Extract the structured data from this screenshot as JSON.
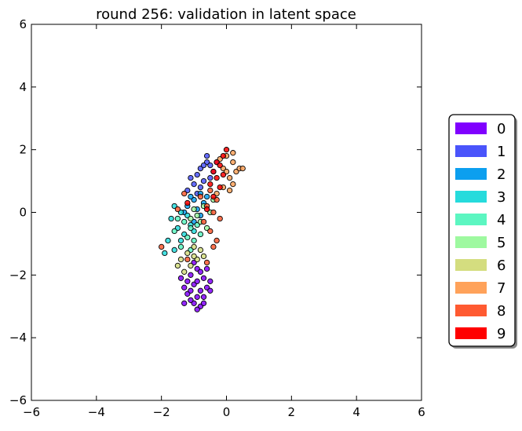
{
  "chart_data": {
    "type": "scatter",
    "title": "round 256: validation in latent space",
    "xlabel": "",
    "ylabel": "",
    "xlim": [
      -6,
      6
    ],
    "ylim": [
      -6,
      6
    ],
    "xticks": [
      -6,
      -4,
      -2,
      0,
      2,
      4,
      6
    ],
    "yticks": [
      -6,
      -4,
      -2,
      0,
      2,
      4,
      6
    ],
    "grid": false,
    "legend_position": "right",
    "series": [
      {
        "name": "0",
        "color": "#8000ff",
        "points": [
          [
            -0.9,
            -1.8
          ],
          [
            -1.1,
            -2.0
          ],
          [
            -0.7,
            -2.1
          ],
          [
            -1.0,
            -2.3
          ],
          [
            -0.8,
            -2.5
          ],
          [
            -1.2,
            -2.6
          ],
          [
            -0.6,
            -2.4
          ],
          [
            -0.9,
            -2.7
          ],
          [
            -1.0,
            -2.9
          ],
          [
            -0.8,
            -3.0
          ],
          [
            -1.1,
            -2.8
          ],
          [
            -0.7,
            -2.7
          ],
          [
            -0.9,
            -3.1
          ],
          [
            -1.3,
            -2.4
          ],
          [
            -0.5,
            -2.2
          ],
          [
            -1.0,
            -1.6
          ],
          [
            -0.8,
            -1.9
          ],
          [
            -1.2,
            -2.2
          ],
          [
            -0.6,
            -1.8
          ],
          [
            -1.4,
            -2.1
          ],
          [
            -0.9,
            -2.2
          ],
          [
            -1.1,
            -2.5
          ],
          [
            -0.7,
            -2.9
          ],
          [
            -0.5,
            -2.5
          ],
          [
            -1.3,
            -2.9
          ]
        ]
      },
      {
        "name": "1",
        "color": "#4a54fb",
        "points": [
          [
            -0.8,
            1.4
          ],
          [
            -0.6,
            1.6
          ],
          [
            -0.9,
            1.2
          ],
          [
            -0.5,
            1.5
          ],
          [
            -0.7,
            1.0
          ],
          [
            -1.0,
            0.9
          ],
          [
            -0.4,
            1.3
          ],
          [
            -0.6,
            1.8
          ],
          [
            -1.1,
            1.1
          ],
          [
            -0.3,
            1.6
          ],
          [
            -0.8,
            0.8
          ],
          [
            -0.5,
            1.1
          ],
          [
            -1.2,
            0.7
          ],
          [
            -0.7,
            1.5
          ],
          [
            -0.9,
            0.6
          ]
        ]
      },
      {
        "name": "2",
        "color": "#0c9fef",
        "points": [
          [
            -1.0,
            0.4
          ],
          [
            -0.8,
            0.6
          ],
          [
            -1.2,
            0.2
          ],
          [
            -0.7,
            0.3
          ],
          [
            -0.9,
            0.1
          ],
          [
            -1.1,
            0.5
          ],
          [
            -0.6,
            0.5
          ],
          [
            -1.3,
            0.0
          ],
          [
            -0.8,
            -0.1
          ],
          [
            -1.0,
            -0.3
          ]
        ]
      },
      {
        "name": "3",
        "color": "#26dbdc",
        "points": [
          [
            -1.6,
            0.2
          ],
          [
            -1.4,
            0.0
          ],
          [
            -1.7,
            -0.2
          ],
          [
            -1.2,
            -0.1
          ],
          [
            -1.5,
            -0.5
          ],
          [
            -1.3,
            -0.7
          ],
          [
            -1.8,
            -0.9
          ],
          [
            -1.6,
            -1.2
          ],
          [
            -1.1,
            -0.4
          ],
          [
            -1.4,
            -0.9
          ],
          [
            -1.9,
            -1.3
          ],
          [
            -1.0,
            -0.6
          ]
        ]
      },
      {
        "name": "4",
        "color": "#5cf6c1",
        "points": [
          [
            -1.3,
            -0.3
          ],
          [
            -1.1,
            -0.5
          ],
          [
            -1.5,
            -0.2
          ],
          [
            -0.9,
            -0.4
          ],
          [
            -1.2,
            -0.8
          ],
          [
            -1.4,
            -1.1
          ],
          [
            -1.0,
            -0.9
          ],
          [
            -1.6,
            -0.6
          ],
          [
            -0.8,
            -0.7
          ],
          [
            -1.1,
            -1.2
          ]
        ]
      },
      {
        "name": "5",
        "color": "#9ef9a0",
        "points": [
          [
            -0.7,
            0.2
          ],
          [
            -0.9,
            -0.1
          ],
          [
            -0.5,
            0.0
          ],
          [
            -1.1,
            -0.2
          ],
          [
            -0.6,
            -0.5
          ],
          [
            -0.8,
            -0.3
          ],
          [
            -0.4,
            0.4
          ],
          [
            -1.0,
            0.1
          ]
        ]
      },
      {
        "name": "6",
        "color": "#d4dd7f",
        "points": [
          [
            -1.0,
            -1.1
          ],
          [
            -1.2,
            -1.3
          ],
          [
            -0.8,
            -1.2
          ],
          [
            -1.4,
            -1.5
          ],
          [
            -0.9,
            -1.5
          ],
          [
            -1.1,
            -1.7
          ],
          [
            -1.3,
            -1.9
          ],
          [
            -0.7,
            -1.4
          ],
          [
            -1.5,
            -1.7
          ],
          [
            -1.0,
            -1.4
          ]
        ]
      },
      {
        "name": "7",
        "color": "#ffa25a",
        "points": [
          [
            0.0,
            1.8
          ],
          [
            0.2,
            1.6
          ],
          [
            -0.1,
            1.4
          ],
          [
            0.3,
            1.3
          ],
          [
            0.1,
            1.1
          ],
          [
            0.4,
            1.4
          ],
          [
            -0.2,
            1.7
          ],
          [
            0.2,
            1.9
          ],
          [
            0.0,
            1.3
          ],
          [
            0.5,
            1.4
          ],
          [
            -0.1,
            0.8
          ],
          [
            0.1,
            0.7
          ],
          [
            -0.3,
            0.6
          ],
          [
            0.2,
            0.9
          ]
        ]
      },
      {
        "name": "8",
        "color": "#ff5a31",
        "points": [
          [
            -0.5,
            0.7
          ],
          [
            -0.3,
            0.4
          ],
          [
            -0.6,
            0.2
          ],
          [
            -0.4,
            0.0
          ],
          [
            -0.7,
            -0.3
          ],
          [
            -0.5,
            -0.6
          ],
          [
            -0.3,
            -0.9
          ],
          [
            -0.2,
            -0.2
          ],
          [
            -0.8,
            0.5
          ],
          [
            -0.4,
            -1.1
          ],
          [
            -1.5,
            0.1
          ],
          [
            -1.3,
            0.6
          ],
          [
            -2.0,
            -1.1
          ],
          [
            -1.2,
            -1.5
          ],
          [
            -0.6,
            -1.6
          ]
        ]
      },
      {
        "name": "9",
        "color": "#ff0000",
        "points": [
          [
            -0.3,
            1.6
          ],
          [
            -0.1,
            1.8
          ],
          [
            0.0,
            2.0
          ],
          [
            -0.2,
            1.5
          ],
          [
            -0.4,
            1.3
          ],
          [
            -0.1,
            1.2
          ],
          [
            -0.5,
            0.9
          ],
          [
            -0.2,
            0.8
          ],
          [
            -0.3,
            1.1
          ],
          [
            -0.6,
            0.1
          ],
          [
            -0.4,
            0.5
          ],
          [
            -1.2,
            0.3
          ]
        ]
      }
    ]
  }
}
